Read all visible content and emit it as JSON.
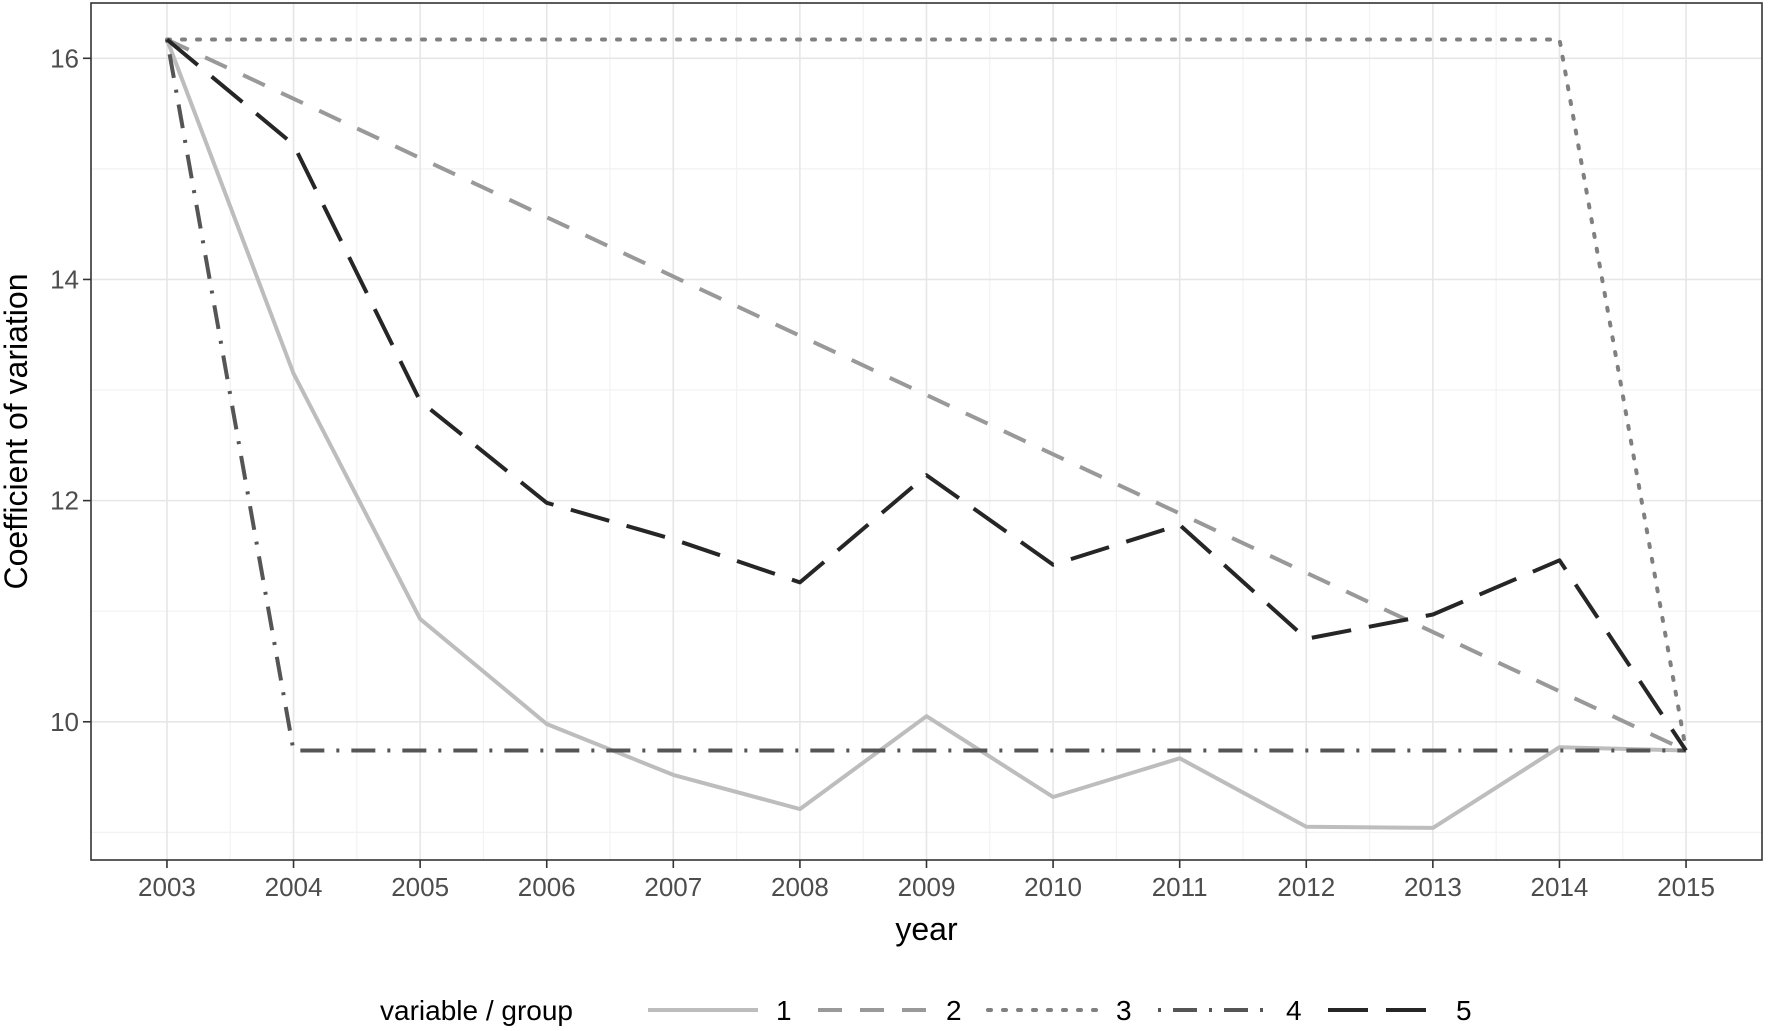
{
  "chart_data": {
    "type": "line",
    "xlabel": "year",
    "ylabel": "Coefficient of variation",
    "x": [
      2003,
      2004,
      2005,
      2006,
      2007,
      2008,
      2009,
      2010,
      2011,
      2012,
      2013,
      2014,
      2015
    ],
    "x_ticks": [
      "2003",
      "2004",
      "2005",
      "2006",
      "2007",
      "2008",
      "2009",
      "2010",
      "2011",
      "2012",
      "2013",
      "2014",
      "2015"
    ],
    "y_ticks": [
      "10",
      "12",
      "14",
      "16"
    ],
    "xlim": [
      2002.4,
      2015.6
    ],
    "ylim": [
      8.75,
      16.5
    ],
    "grid": true,
    "legend_title": "variable / group",
    "legend_position": "bottom",
    "series": [
      {
        "name": "1",
        "color": "#bdbdbd",
        "dash": "solid",
        "values": [
          16.17,
          13.15,
          10.93,
          9.98,
          9.52,
          9.21,
          10.05,
          9.32,
          9.67,
          9.05,
          9.04,
          9.77,
          9.74
        ]
      },
      {
        "name": "2",
        "color": "#999999",
        "dash": "dashed",
        "x": [
          2003,
          2015
        ],
        "values": [
          16.17,
          9.74
        ]
      },
      {
        "name": "3",
        "color": "#808080",
        "dash": "dotted",
        "x": [
          2003,
          2014,
          2015
        ],
        "values": [
          16.17,
          16.17,
          9.74
        ]
      },
      {
        "name": "4",
        "color": "#555555",
        "dash": "dotdash",
        "x": [
          2003,
          2004,
          2015
        ],
        "values": [
          16.17,
          9.74,
          9.74
        ]
      },
      {
        "name": "5",
        "color": "#262626",
        "dash": "longdash",
        "values": [
          16.17,
          15.22,
          12.9,
          11.98,
          11.65,
          11.26,
          12.23,
          11.42,
          11.78,
          10.75,
          10.97,
          11.46,
          9.74
        ]
      }
    ]
  }
}
